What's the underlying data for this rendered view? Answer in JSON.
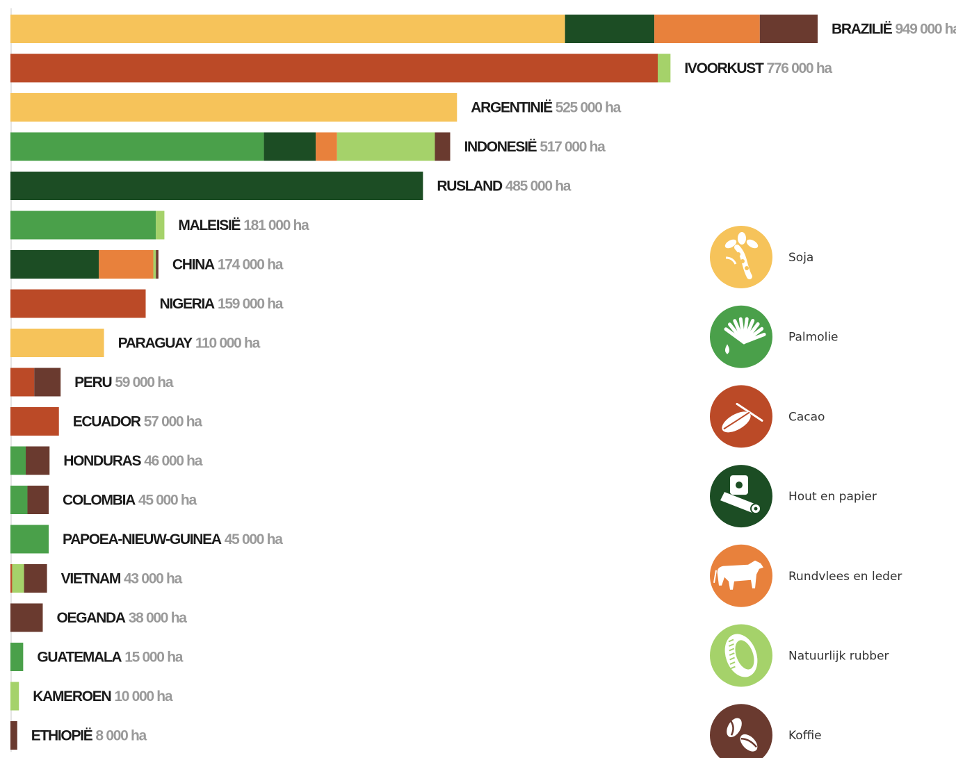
{
  "chart_data": {
    "type": "bar",
    "orientation": "horizontal",
    "stacked": true,
    "unit": "ha",
    "categories": [
      "BRAZILIË",
      "IVOORKUST",
      "ARGENTINIË",
      "INDONESIË",
      "RUSLAND",
      "MALEISIË",
      "CHINA",
      "NIGERIA",
      "PARAGUAY",
      "PERU",
      "ECUADOR",
      "HONDURAS",
      "COLOMBIA",
      "PAPOEA-NIEUW-GUINEA",
      "VIETNAM",
      "OEGANDA",
      "GUATEMALA",
      "KAMEROEN",
      "ETHIOPIË"
    ],
    "value_labels": [
      "949 000 ha",
      "776 000 ha",
      "525 000 ha",
      "517 000 ha",
      "485 000 ha",
      "181 000 ha",
      "174 000 ha",
      "159 000 ha",
      "110 000 ha",
      "59 000 ha",
      "57 000 ha",
      "46 000 ha",
      "45 000 ha",
      "45 000 ha",
      "43 000 ha",
      "38 000 ha",
      "15 000 ha",
      "10 000 ha",
      "8 000 ha"
    ],
    "totals": [
      949000,
      776000,
      525000,
      517000,
      485000,
      181000,
      174000,
      159000,
      110000,
      59000,
      57000,
      46000,
      45000,
      45000,
      43000,
      38000,
      15000,
      10000,
      8000
    ],
    "series": [
      {
        "name": "Soja",
        "color": "#f6c35a",
        "icon": "soy-icon",
        "values": [
          652000,
          0,
          525000,
          0,
          0,
          0,
          0,
          0,
          110000,
          0,
          0,
          0,
          0,
          0,
          0,
          0,
          0,
          0,
          0
        ]
      },
      {
        "name": "Palmolie",
        "color": "#4aa04a",
        "icon": "palm-oil-icon",
        "values": [
          0,
          0,
          0,
          298000,
          0,
          171000,
          0,
          0,
          0,
          0,
          0,
          18000,
          20000,
          45000,
          0,
          0,
          15000,
          0,
          0
        ]
      },
      {
        "name": "Cacao",
        "color": "#bb4a27",
        "icon": "cacao-icon",
        "values": [
          0,
          761000,
          0,
          0,
          0,
          0,
          0,
          159000,
          0,
          28000,
          57000,
          0,
          0,
          0,
          2000,
          0,
          0,
          0,
          0
        ]
      },
      {
        "name": "Hout en papier",
        "color": "#1c4d24",
        "icon": "wood-paper-icon",
        "values": [
          105000,
          0,
          0,
          61000,
          485000,
          0,
          104000,
          0,
          0,
          0,
          0,
          0,
          0,
          0,
          0,
          0,
          0,
          0,
          0
        ]
      },
      {
        "name": "Rundvlees en leder",
        "color": "#e8813c",
        "icon": "cattle-icon",
        "values": [
          124000,
          0,
          0,
          25000,
          0,
          0,
          64000,
          0,
          0,
          0,
          0,
          0,
          0,
          0,
          0,
          0,
          0,
          0,
          0
        ]
      },
      {
        "name": "Natuurlijk rubber",
        "color": "#a5d26a",
        "icon": "rubber-tire-icon",
        "values": [
          0,
          15000,
          0,
          115000,
          0,
          10000,
          3000,
          0,
          0,
          0,
          0,
          0,
          0,
          0,
          14000,
          0,
          0,
          10000,
          0
        ]
      },
      {
        "name": "Koffie",
        "color": "#6a3a2f",
        "icon": "coffee-bean-icon",
        "values": [
          68000,
          0,
          0,
          18000,
          0,
          0,
          3000,
          0,
          0,
          31000,
          0,
          28000,
          25000,
          0,
          27000,
          38000,
          0,
          0,
          8000
        ]
      }
    ],
    "legend_position": "right",
    "grid": false
  }
}
